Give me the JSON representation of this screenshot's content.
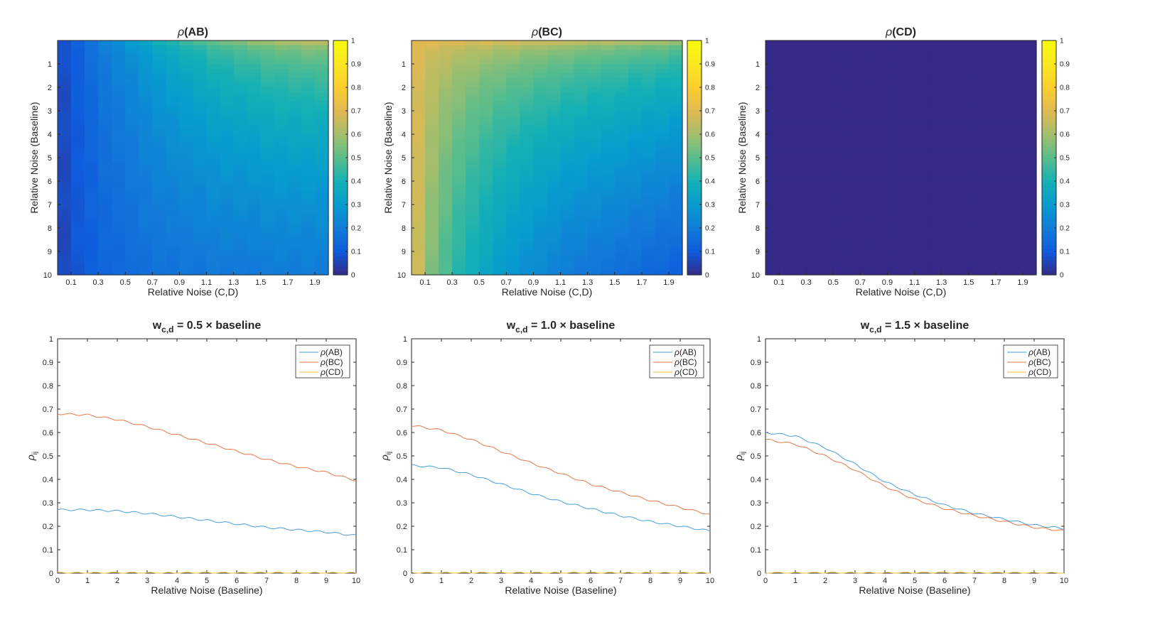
{
  "chart_data": [
    {
      "type": "heatmap",
      "title": "ρ(AB)",
      "xlabel": "Relative Noise (C,D)",
      "ylabel": "Relative Noise (Baseline)",
      "xticks": [
        "0.1",
        "0.3",
        "0.5",
        "0.7",
        "0.9",
        "1.1",
        "1.3",
        "1.5",
        "1.7",
        "1.9"
      ],
      "yticks": [
        "1",
        "2",
        "3",
        "4",
        "5",
        "6",
        "7",
        "8",
        "9",
        "10"
      ],
      "xlim": [
        0,
        2
      ],
      "ylim": [
        0,
        10
      ],
      "colorbar": {
        "range": [
          0,
          1
        ],
        "ticks": [
          "0",
          "0.1",
          "0.2",
          "0.3",
          "0.4",
          "0.5",
          "0.6",
          "0.7",
          "0.8",
          "0.9",
          "1"
        ]
      },
      "value_model": {
        "x_grid": [
          0.05,
          0.15,
          0.25,
          0.35,
          0.45,
          0.55,
          0.65,
          0.75,
          0.85,
          0.95,
          1.05,
          1.15,
          1.25,
          1.35,
          1.45,
          1.55,
          1.65,
          1.75,
          1.85,
          1.95
        ],
        "top_row": [
          0.08,
          0.12,
          0.17,
          0.22,
          0.26,
          0.3,
          0.34,
          0.38,
          0.42,
          0.45,
          0.48,
          0.51,
          0.53,
          0.55,
          0.57,
          0.59,
          0.6,
          0.61,
          0.62,
          0.63
        ],
        "bottom_row": [
          0.06,
          0.09,
          0.11,
          0.13,
          0.14,
          0.15,
          0.16,
          0.17,
          0.17,
          0.18,
          0.18,
          0.19,
          0.19,
          0.19,
          0.19,
          0.2,
          0.2,
          0.2,
          0.2,
          0.2
        ]
      }
    },
    {
      "type": "heatmap",
      "title": "ρ(BC)",
      "xlabel": "Relative Noise (C,D)",
      "ylabel": "Relative Noise (Baseline)",
      "xticks": [
        "0.1",
        "0.3",
        "0.5",
        "0.7",
        "0.9",
        "1.1",
        "1.3",
        "1.5",
        "1.7",
        "1.9"
      ],
      "yticks": [
        "1",
        "2",
        "3",
        "4",
        "5",
        "6",
        "7",
        "8",
        "9",
        "10"
      ],
      "xlim": [
        0,
        2
      ],
      "ylim": [
        0,
        10
      ],
      "colorbar": {
        "range": [
          0,
          1
        ],
        "ticks": [
          "0",
          "0.1",
          "0.2",
          "0.3",
          "0.4",
          "0.5",
          "0.6",
          "0.7",
          "0.8",
          "0.9",
          "1"
        ]
      },
      "value_model": {
        "x_grid": [
          0.05,
          0.15,
          0.25,
          0.35,
          0.45,
          0.55,
          0.65,
          0.75,
          0.85,
          0.95,
          1.05,
          1.15,
          1.25,
          1.35,
          1.45,
          1.55,
          1.65,
          1.75,
          1.85,
          1.95
        ],
        "top_row": [
          0.7,
          0.7,
          0.69,
          0.69,
          0.68,
          0.68,
          0.67,
          0.67,
          0.66,
          0.65,
          0.65,
          0.64,
          0.63,
          0.62,
          0.62,
          0.61,
          0.6,
          0.6,
          0.59,
          0.58
        ],
        "bottom_row": [
          0.66,
          0.55,
          0.48,
          0.42,
          0.38,
          0.34,
          0.31,
          0.28,
          0.26,
          0.24,
          0.22,
          0.2,
          0.19,
          0.18,
          0.17,
          0.16,
          0.15,
          0.14,
          0.13,
          0.12
        ]
      }
    },
    {
      "type": "heatmap",
      "title": "ρ(CD)",
      "xlabel": "Relative Noise (C,D)",
      "ylabel": "Relative Noise (Baseline)",
      "xticks": [
        "0.1",
        "0.3",
        "0.5",
        "0.7",
        "0.9",
        "1.1",
        "1.3",
        "1.5",
        "1.7",
        "1.9"
      ],
      "yticks": [
        "1",
        "2",
        "3",
        "4",
        "5",
        "6",
        "7",
        "8",
        "9",
        "10"
      ],
      "xlim": [
        0,
        2
      ],
      "ylim": [
        0,
        10
      ],
      "colorbar": {
        "range": [
          0,
          1
        ],
        "ticks": [
          "0",
          "0.1",
          "0.2",
          "0.3",
          "0.4",
          "0.5",
          "0.6",
          "0.7",
          "0.8",
          "0.9",
          "1"
        ]
      },
      "value_model": {
        "x_grid": [
          0.05,
          0.15,
          0.25,
          0.35,
          0.45,
          0.55,
          0.65,
          0.75,
          0.85,
          0.95,
          1.05,
          1.15,
          1.25,
          1.35,
          1.45,
          1.55,
          1.65,
          1.75,
          1.85,
          1.95
        ],
        "top_row": [
          0,
          0,
          0,
          0,
          0,
          0,
          0,
          0,
          0,
          0,
          0,
          0,
          0,
          0,
          0,
          0,
          0,
          0,
          0,
          0
        ],
        "bottom_row": [
          0,
          0,
          0,
          0,
          0,
          0,
          0,
          0,
          0,
          0,
          0,
          0,
          0,
          0,
          0,
          0,
          0,
          0,
          0,
          0
        ]
      }
    },
    {
      "type": "line",
      "title_main": "w",
      "title_sub": "c,d",
      "title_rest": " = 0.5 × baseline",
      "xlabel": "Relative Noise (Baseline)",
      "ylabel_main": "ρ",
      "ylabel_sub": "ij",
      "xlim": [
        0,
        10
      ],
      "ylim": [
        0,
        1
      ],
      "xticks": [
        "0",
        "1",
        "2",
        "3",
        "4",
        "5",
        "6",
        "7",
        "8",
        "9",
        "10"
      ],
      "yticks": [
        "0",
        "0.1",
        "0.2",
        "0.3",
        "0.4",
        "0.5",
        "0.6",
        "0.7",
        "0.8",
        "0.9",
        "1"
      ],
      "legend_position": "top-right",
      "x": [
        0,
        1,
        2,
        3,
        4,
        5,
        6,
        7,
        8,
        9,
        10
      ],
      "series": [
        {
          "name": "ρ(AB)",
          "color": "#4a9fd8",
          "values": [
            0.27,
            0.27,
            0.265,
            0.255,
            0.24,
            0.225,
            0.21,
            0.195,
            0.185,
            0.175,
            0.16
          ]
        },
        {
          "name": "ρ(BC)",
          "color": "#e8784a",
          "values": [
            0.68,
            0.675,
            0.655,
            0.625,
            0.59,
            0.555,
            0.52,
            0.485,
            0.455,
            0.43,
            0.395
          ]
        },
        {
          "name": "ρ(CD)",
          "color": "#f2be3c",
          "values": [
            0.002,
            0.001,
            0.002,
            0.001,
            0.001,
            0.002,
            0.001,
            0.002,
            0.001,
            0.001,
            0.001
          ]
        }
      ]
    },
    {
      "type": "line",
      "title_main": "w",
      "title_sub": "c,d",
      "title_rest": " = 1.0 × baseline",
      "xlabel": "Relative Noise (Baseline)",
      "ylabel_main": "ρ",
      "ylabel_sub": "ij",
      "xlim": [
        0,
        10
      ],
      "ylim": [
        0,
        1
      ],
      "xticks": [
        "0",
        "1",
        "2",
        "3",
        "4",
        "5",
        "6",
        "7",
        "8",
        "9",
        "10"
      ],
      "yticks": [
        "0",
        "0.1",
        "0.2",
        "0.3",
        "0.4",
        "0.5",
        "0.6",
        "0.7",
        "0.8",
        "0.9",
        "1"
      ],
      "legend_position": "top-right",
      "x": [
        0,
        1,
        2,
        3,
        4,
        5,
        6,
        7,
        8,
        9,
        10
      ],
      "series": [
        {
          "name": "ρ(AB)",
          "color": "#4a9fd8",
          "values": [
            0.46,
            0.45,
            0.42,
            0.38,
            0.34,
            0.305,
            0.275,
            0.245,
            0.22,
            0.2,
            0.18
          ]
        },
        {
          "name": "ρ(BC)",
          "color": "#e8784a",
          "values": [
            0.63,
            0.61,
            0.57,
            0.52,
            0.47,
            0.425,
            0.38,
            0.345,
            0.31,
            0.28,
            0.25
          ]
        },
        {
          "name": "ρ(CD)",
          "color": "#f2be3c",
          "values": [
            0.002,
            0.001,
            0.002,
            0.001,
            0.002,
            0.001,
            0.002,
            0.001,
            0.001,
            0.001,
            0.001
          ]
        }
      ]
    },
    {
      "type": "line",
      "title_main": "w",
      "title_sub": "c,d",
      "title_rest": " = 1.5 × baseline",
      "xlabel": "Relative Noise (Baseline)",
      "ylabel_main": "ρ",
      "ylabel_sub": "ij",
      "xlim": [
        0,
        10
      ],
      "ylim": [
        0,
        1
      ],
      "xticks": [
        "0",
        "1",
        "2",
        "3",
        "4",
        "5",
        "6",
        "7",
        "8",
        "9",
        "10"
      ],
      "yticks": [
        "0",
        "0.1",
        "0.2",
        "0.3",
        "0.4",
        "0.5",
        "0.6",
        "0.7",
        "0.8",
        "0.9",
        "1"
      ],
      "legend_position": "top-right",
      "x": [
        0,
        1,
        2,
        3,
        4,
        5,
        6,
        7,
        8,
        9,
        10
      ],
      "series": [
        {
          "name": "ρ(AB)",
          "color": "#4a9fd8",
          "values": [
            0.6,
            0.585,
            0.535,
            0.465,
            0.39,
            0.335,
            0.29,
            0.255,
            0.23,
            0.205,
            0.19
          ]
        },
        {
          "name": "ρ(BC)",
          "color": "#e8784a",
          "values": [
            0.57,
            0.55,
            0.5,
            0.44,
            0.37,
            0.315,
            0.275,
            0.245,
            0.22,
            0.195,
            0.18
          ]
        },
        {
          "name": "ρ(CD)",
          "color": "#f2be3c",
          "values": [
            0.002,
            0.001,
            0.002,
            0.001,
            0.001,
            0.002,
            0.003,
            0.001,
            0.002,
            0.001,
            0.001
          ]
        }
      ]
    }
  ]
}
